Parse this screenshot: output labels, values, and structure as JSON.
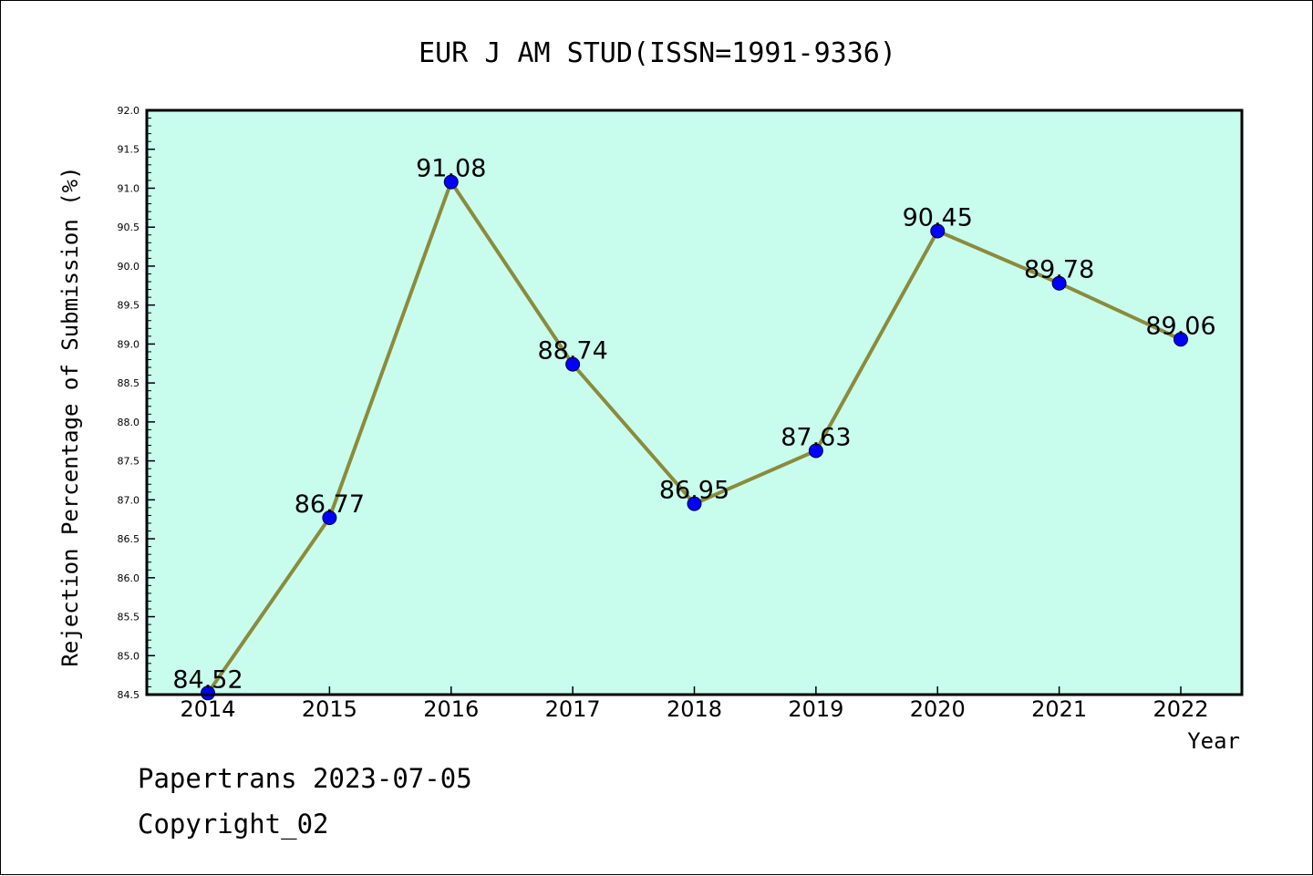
{
  "chart_data": {
    "type": "line",
    "title": "EUR J AM STUD(ISSN=1991-9336)",
    "xlabel": "Year",
    "ylabel": "Rejection Percentage of Submission (%)",
    "categories": [
      "2014",
      "2015",
      "2016",
      "2017",
      "2018",
      "2019",
      "2020",
      "2021",
      "2022"
    ],
    "series": [
      {
        "name": "Rejection Percentage",
        "values": [
          84.52,
          86.77,
          91.08,
          88.74,
          86.95,
          87.63,
          90.45,
          89.78,
          89.06
        ],
        "labels": [
          "84.52",
          "86.77",
          "91.08",
          "88.74",
          "86.95",
          "87.63",
          "90.45",
          "89.78",
          "89.06"
        ]
      }
    ],
    "ylim": [
      84.5,
      92.0
    ],
    "yticks": [
      "84.5",
      "85.0",
      "85.5",
      "86.0",
      "86.5",
      "87.0",
      "87.5",
      "88.0",
      "88.5",
      "89.0",
      "89.5",
      "90.0",
      "90.5",
      "91.0",
      "91.5",
      "92.0"
    ],
    "grid": false,
    "colors": {
      "plot_background": "#c8fdee",
      "line": "#8b8b3a",
      "marker": "#0000ff",
      "axes": "#000000"
    }
  },
  "footer": {
    "line1": "Papertrans 2023-07-05",
    "line2": "Copyright_02"
  }
}
